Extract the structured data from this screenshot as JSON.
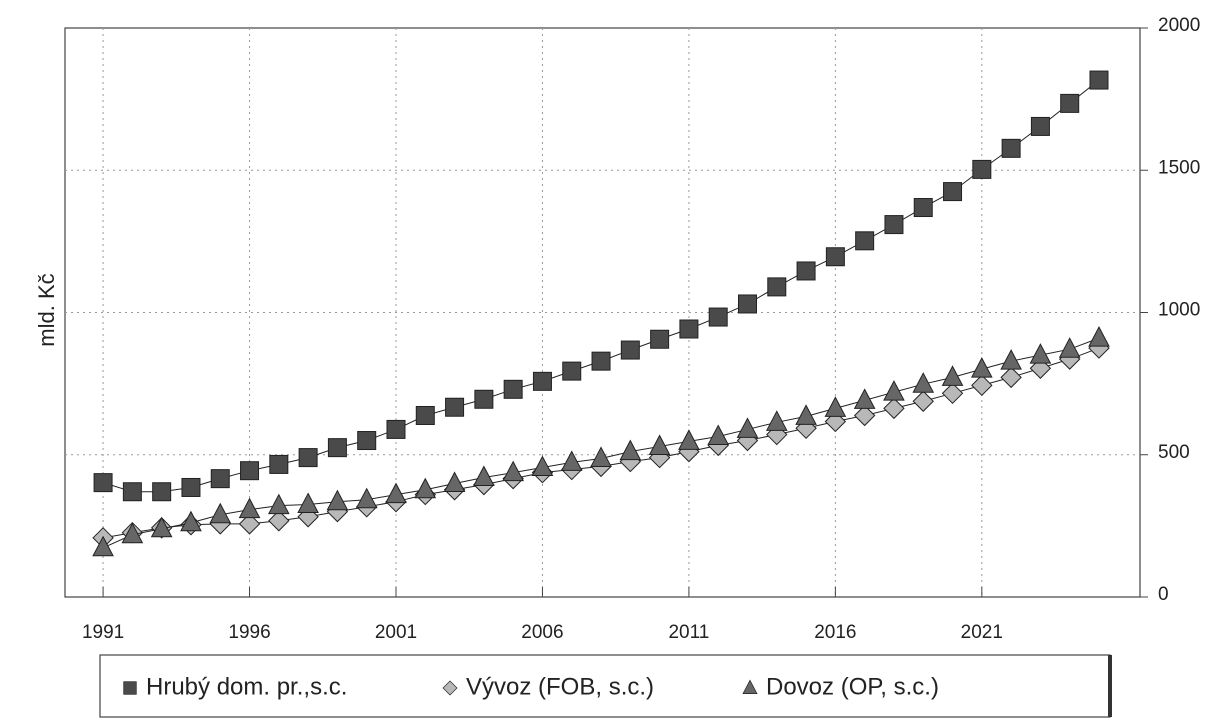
{
  "chart_data": {
    "type": "line",
    "y_label": "mld. Kč",
    "x": [
      1991,
      1992,
      1993,
      1994,
      1995,
      1996,
      1997,
      1998,
      1999,
      2000,
      2001,
      2002,
      2003,
      2004,
      2005,
      2006,
      2007,
      2008,
      2009,
      2010,
      2011,
      2012,
      2013,
      2014,
      2015,
      2016,
      2017,
      2018,
      2019,
      2020,
      2021,
      2022,
      2023,
      2024,
      2025
    ],
    "series": [
      {
        "name": "Hrubý dom. pr.,s.c.",
        "color": "#4a4a4a",
        "marker": "square",
        "values": [
          402,
          370,
          370,
          385,
          416,
          444,
          466,
          490,
          525,
          550,
          589,
          638,
          667,
          695,
          730,
          758,
          794,
          829,
          868,
          906,
          942,
          984,
          1030,
          1090,
          1146,
          1196,
          1252,
          1309,
          1369,
          1425,
          1503,
          1577,
          1654,
          1735,
          1817
        ]
      },
      {
        "name": "Vývoz (FOB, s.c.)",
        "color": "#b8b8b8",
        "marker": "diamond",
        "values": [
          208,
          226,
          243,
          254,
          257,
          257,
          268,
          282,
          300,
          317,
          335,
          360,
          377,
          395,
          416,
          437,
          448,
          459,
          476,
          490,
          511,
          533,
          550,
          571,
          593,
          617,
          638,
          663,
          688,
          716,
          744,
          772,
          804,
          836,
          875
        ]
      },
      {
        "name": "Dovoz (OP, s.c.)",
        "color": "#666666",
        "marker": "triangle",
        "values": [
          173,
          219,
          240,
          261,
          289,
          307,
          321,
          325,
          335,
          342,
          360,
          377,
          399,
          420,
          437,
          455,
          473,
          487,
          511,
          529,
          547,
          564,
          589,
          614,
          635,
          663,
          691,
          720,
          748,
          772,
          801,
          829,
          850,
          871,
          910
        ]
      }
    ],
    "xlim": [
      1989.7,
      2026.4
    ],
    "xticks": [
      1991,
      1996,
      2001,
      2006,
      2011,
      2016,
      2021
    ],
    "ylim": [
      0,
      2000
    ],
    "yticks": [
      0,
      500,
      1000,
      1500,
      2000
    ],
    "grid": true
  }
}
